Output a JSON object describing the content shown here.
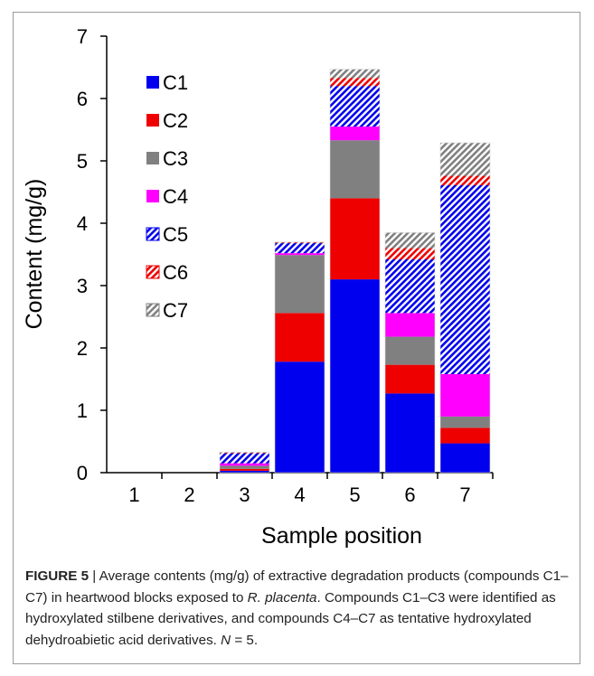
{
  "chart_data": {
    "type": "bar",
    "stacked": true,
    "xlabel": "Sample position",
    "ylabel": "Content (mg/g)",
    "ylim": [
      0,
      7
    ],
    "yticks": [
      "0",
      "1",
      "2",
      "3",
      "4",
      "5",
      "6",
      "7"
    ],
    "categories": [
      "1",
      "2",
      "3",
      "4",
      "5",
      "6",
      "7"
    ],
    "legend_position": "left-inside",
    "grid": false,
    "series": [
      {
        "name": "C1",
        "color": "#0000ee",
        "pattern": "solid",
        "values": [
          0,
          0,
          0.03,
          1.78,
          3.1,
          1.27,
          0.47
        ]
      },
      {
        "name": "C2",
        "color": "#ee0000",
        "pattern": "solid",
        "values": [
          0,
          0,
          0.03,
          0.78,
          1.3,
          0.46,
          0.25
        ]
      },
      {
        "name": "C3",
        "color": "#808080",
        "pattern": "solid",
        "values": [
          0,
          0,
          0.05,
          0.93,
          0.93,
          0.45,
          0.18
        ]
      },
      {
        "name": "C4",
        "color": "#ff00ff",
        "pattern": "solid",
        "values": [
          0,
          0,
          0.04,
          0.03,
          0.22,
          0.38,
          0.68
        ]
      },
      {
        "name": "C5",
        "color": "#0000ee",
        "pattern": "hatch",
        "values": [
          0,
          0,
          0.16,
          0.16,
          0.65,
          0.86,
          3.03
        ]
      },
      {
        "name": "C6",
        "color": "#ee0000",
        "pattern": "hatch",
        "values": [
          0,
          0,
          0.01,
          0.01,
          0.13,
          0.18,
          0.15
        ]
      },
      {
        "name": "C7",
        "color": "#808080",
        "pattern": "hatch",
        "values": [
          0,
          0,
          0.01,
          0.01,
          0.14,
          0.25,
          0.53
        ]
      }
    ]
  },
  "caption": {
    "label": "FIGURE 5",
    "separator": " | ",
    "text_before_species": " Average contents (mg/g) of extractive degradation products (compounds C1–C7) in heartwood blocks exposed to ",
    "species": "R. placenta",
    "text_middle": ". Compounds C1–C3 were identified as hydroxylated stilbene derivatives, and compounds C4–C7 as tentative hydroxylated dehydroabietic acid derivatives. ",
    "n_symbol": "N",
    "n_value": " = 5."
  }
}
